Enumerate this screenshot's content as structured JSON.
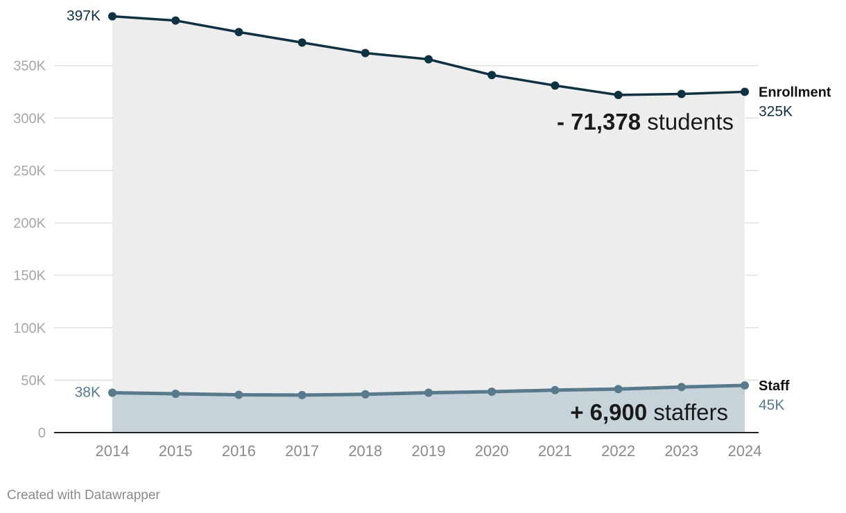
{
  "chart_data": {
    "type": "area",
    "x": [
      2014,
      2015,
      2016,
      2017,
      2018,
      2019,
      2020,
      2021,
      2022,
      2023,
      2024
    ],
    "series": [
      {
        "name": "Enrollment",
        "values": [
          397000,
          393000,
          382000,
          372000,
          362000,
          356000,
          341000,
          331000,
          322000,
          323000,
          325000
        ]
      },
      {
        "name": "Staff",
        "values": [
          38000,
          37000,
          36000,
          35800,
          36500,
          38000,
          39000,
          40500,
          41500,
          43500,
          45000
        ]
      }
    ],
    "y_ticks": [
      0,
      50000,
      100000,
      150000,
      200000,
      250000,
      300000,
      350000
    ],
    "y_tick_labels": [
      "0",
      "50K",
      "100K",
      "150K",
      "200K",
      "250K",
      "300K",
      "350K"
    ],
    "ylim": [
      0,
      400000
    ],
    "grid": true,
    "start_labels": {
      "Enrollment": "397K",
      "Staff": "38K"
    },
    "end_labels": {
      "Enrollment": "325K",
      "Staff": "45K"
    },
    "annotations": [
      {
        "bold": "- 71,378",
        "text": " students"
      },
      {
        "bold": "+ 6,900",
        "text": " staffers"
      }
    ],
    "colors": {
      "Enrollment": "#0f3142",
      "Staff": "#587a8c",
      "enrollment_area": "#ededed",
      "staff_area": "#c7d3da",
      "grid": "#e0e0e0",
      "axis": "#222222"
    }
  },
  "credit": "Created with Datawrapper"
}
